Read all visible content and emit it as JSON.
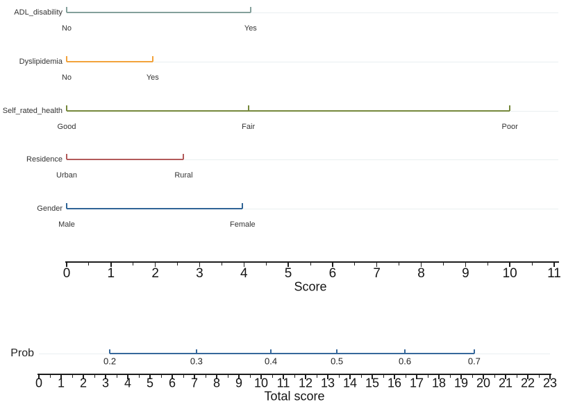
{
  "chart_data": {
    "type": "nomogram",
    "title": "",
    "grid": "off",
    "faint_line_color": "#E9EFF0",
    "axis_color": "#1C1C1C",
    "score_axis": {
      "label": "Score",
      "min": 0,
      "max": 11,
      "major_tick_step": 1,
      "minor_tick_step": 0.5
    },
    "rows": [
      {
        "label": "ADL_disability",
        "color": "#84A09B",
        "points": [
          {
            "label": "No",
            "score": 0
          },
          {
            "label": "Yes",
            "score": 4.15
          }
        ]
      },
      {
        "label": "Dyslipidemia",
        "color": "#F2A23A",
        "points": [
          {
            "label": "No",
            "score": 0
          },
          {
            "label": "Yes",
            "score": 1.94
          }
        ]
      },
      {
        "label": "Self_rated_health",
        "color": "#75883B",
        "points": [
          {
            "label": "Good",
            "score": 0
          },
          {
            "label": "Fair",
            "score": 4.1
          },
          {
            "label": "Poor",
            "score": 10.0
          }
        ]
      },
      {
        "label": "Residence",
        "color": "#B25A5A",
        "points": [
          {
            "label": "Urban",
            "score": 0
          },
          {
            "label": "Rural",
            "score": 2.64
          }
        ]
      },
      {
        "label": "Gender",
        "color": "#2F6496",
        "points": [
          {
            "label": "Male",
            "score": 0
          },
          {
            "label": "Female",
            "score": 3.97
          }
        ]
      }
    ],
    "prob_row": {
      "label": "Prob",
      "color": "#36689B",
      "ticks": [
        {
          "label": "0.2",
          "total_score": 3.19
        },
        {
          "label": "0.3",
          "total_score": 7.09
        },
        {
          "label": "0.4",
          "total_score": 10.44
        },
        {
          "label": "0.5",
          "total_score": 13.41
        },
        {
          "label": "0.6",
          "total_score": 16.47
        },
        {
          "label": "0.7",
          "total_score": 19.59
        }
      ]
    },
    "total_axis": {
      "label": "Total score",
      "min": 0,
      "max": 23,
      "major_tick_step": 1,
      "minor_tick_step": 0.5
    }
  }
}
